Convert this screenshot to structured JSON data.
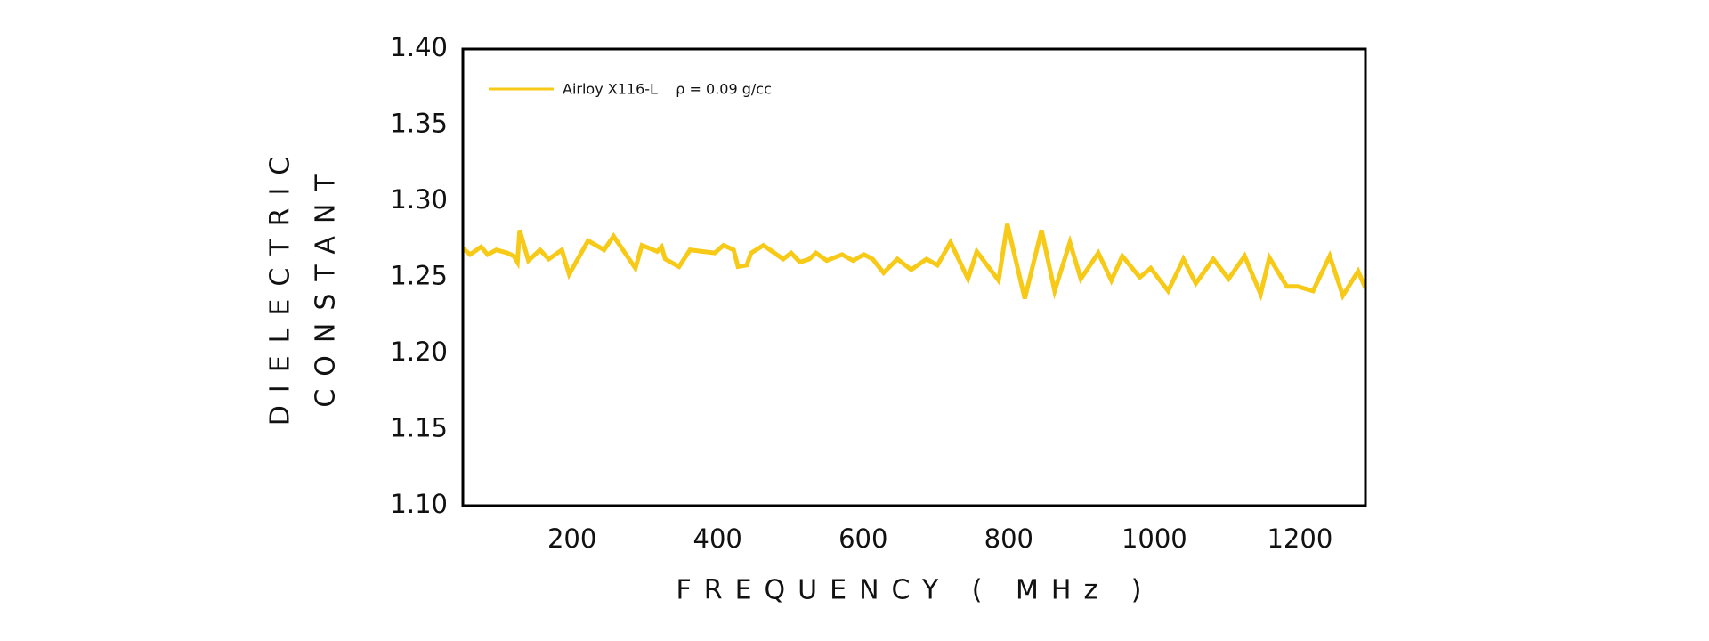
{
  "chart_data": {
    "type": "line",
    "ylabel": [
      "DIELECTRIC",
      "CONSTANT"
    ],
    "xlabel": "FREQUENCY ( MHz )",
    "x": [
      50,
      60,
      75,
      84,
      96,
      111,
      120,
      125,
      128,
      140,
      156,
      168,
      186,
      196,
      222,
      244,
      257,
      287,
      296,
      317,
      323,
      328,
      347,
      362,
      396,
      408,
      422,
      428,
      440,
      446,
      463,
      490,
      501,
      513,
      526,
      535,
      550,
      571,
      586,
      601,
      613,
      628,
      647,
      666,
      687,
      702,
      720,
      744,
      756,
      786,
      798,
      822,
      845,
      863,
      884,
      899,
      923,
      941,
      956,
      980,
      995,
      1019,
      1040,
      1057,
      1081,
      1102,
      1124,
      1146,
      1158,
      1182,
      1197,
      1218,
      1241,
      1259,
      1280,
      1290
    ],
    "series": [
      {
        "name": "Airloy X116-L    ρ = 0.09 g/cc",
        "color": "#f7ca18",
        "values": [
          1.269,
          1.265,
          1.27,
          1.265,
          1.268,
          1.266,
          1.264,
          1.26,
          1.281,
          1.261,
          1.268,
          1.262,
          1.268,
          1.252,
          1.274,
          1.268,
          1.277,
          1.256,
          1.271,
          1.267,
          1.27,
          1.262,
          1.257,
          1.268,
          1.266,
          1.271,
          1.268,
          1.257,
          1.258,
          1.266,
          1.271,
          1.262,
          1.266,
          1.26,
          1.262,
          1.266,
          1.261,
          1.265,
          1.261,
          1.265,
          1.262,
          1.253,
          1.262,
          1.255,
          1.262,
          1.258,
          1.273,
          1.249,
          1.267,
          1.248,
          1.285,
          1.236,
          1.281,
          1.241,
          1.273,
          1.249,
          1.266,
          1.248,
          1.264,
          1.25,
          1.256,
          1.241,
          1.262,
          1.246,
          1.262,
          1.249,
          1.264,
          1.239,
          1.263,
          1.244,
          1.244,
          1.241,
          1.264,
          1.238,
          1.254,
          1.243
        ]
      }
    ],
    "xlim": [
      50,
      1290
    ],
    "ylim": [
      1.1,
      1.4
    ],
    "xticks": [
      200,
      400,
      600,
      800,
      1000,
      1200
    ],
    "yticks": [
      {
        "value": 1.1,
        "label": "1.10"
      },
      {
        "value": 1.15,
        "label": "1.15"
      },
      {
        "value": 1.2,
        "label": "1.20"
      },
      {
        "value": 1.25,
        "label": "1.25"
      },
      {
        "value": 1.3,
        "label": "1.30"
      },
      {
        "value": 1.35,
        "label": "1.35"
      },
      {
        "value": 1.4,
        "label": "1.40"
      }
    ],
    "grid": false
  }
}
